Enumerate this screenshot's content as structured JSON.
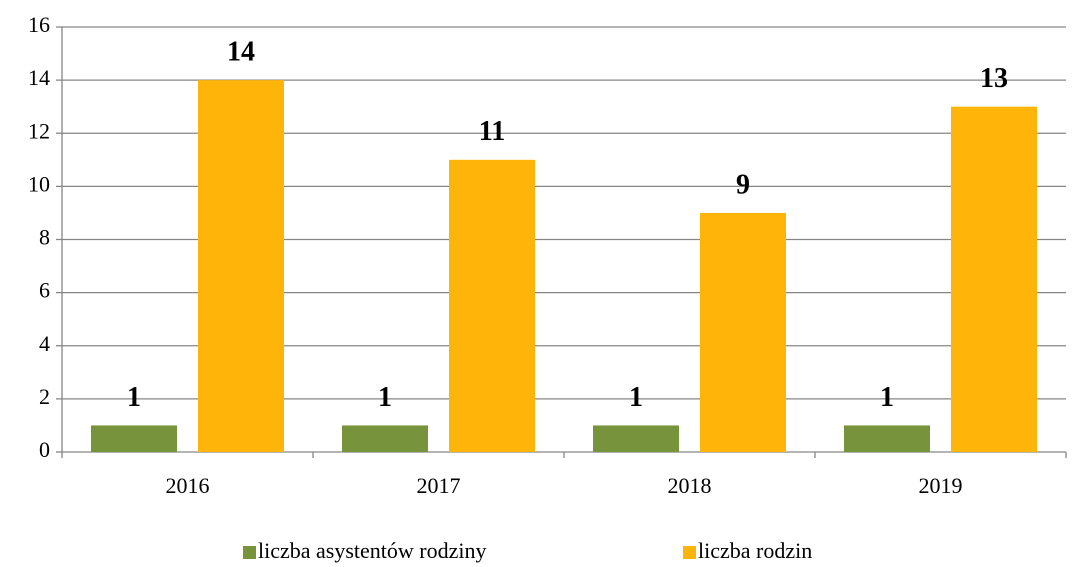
{
  "chart_data": {
    "type": "bar",
    "categories": [
      "2016",
      "2017",
      "2018",
      "2019"
    ],
    "series": [
      {
        "name": "liczba asystentów rodziny",
        "color": "#77933c",
        "values": [
          1,
          1,
          1,
          1
        ]
      },
      {
        "name": "liczba rodzin",
        "color": "#ffb40a",
        "values": [
          14,
          11,
          9,
          13
        ]
      }
    ],
    "ylim": [
      0,
      16
    ],
    "yticks": [
      0,
      2,
      4,
      6,
      8,
      10,
      12,
      14,
      16
    ],
    "grid": true,
    "legend": "bottom"
  }
}
